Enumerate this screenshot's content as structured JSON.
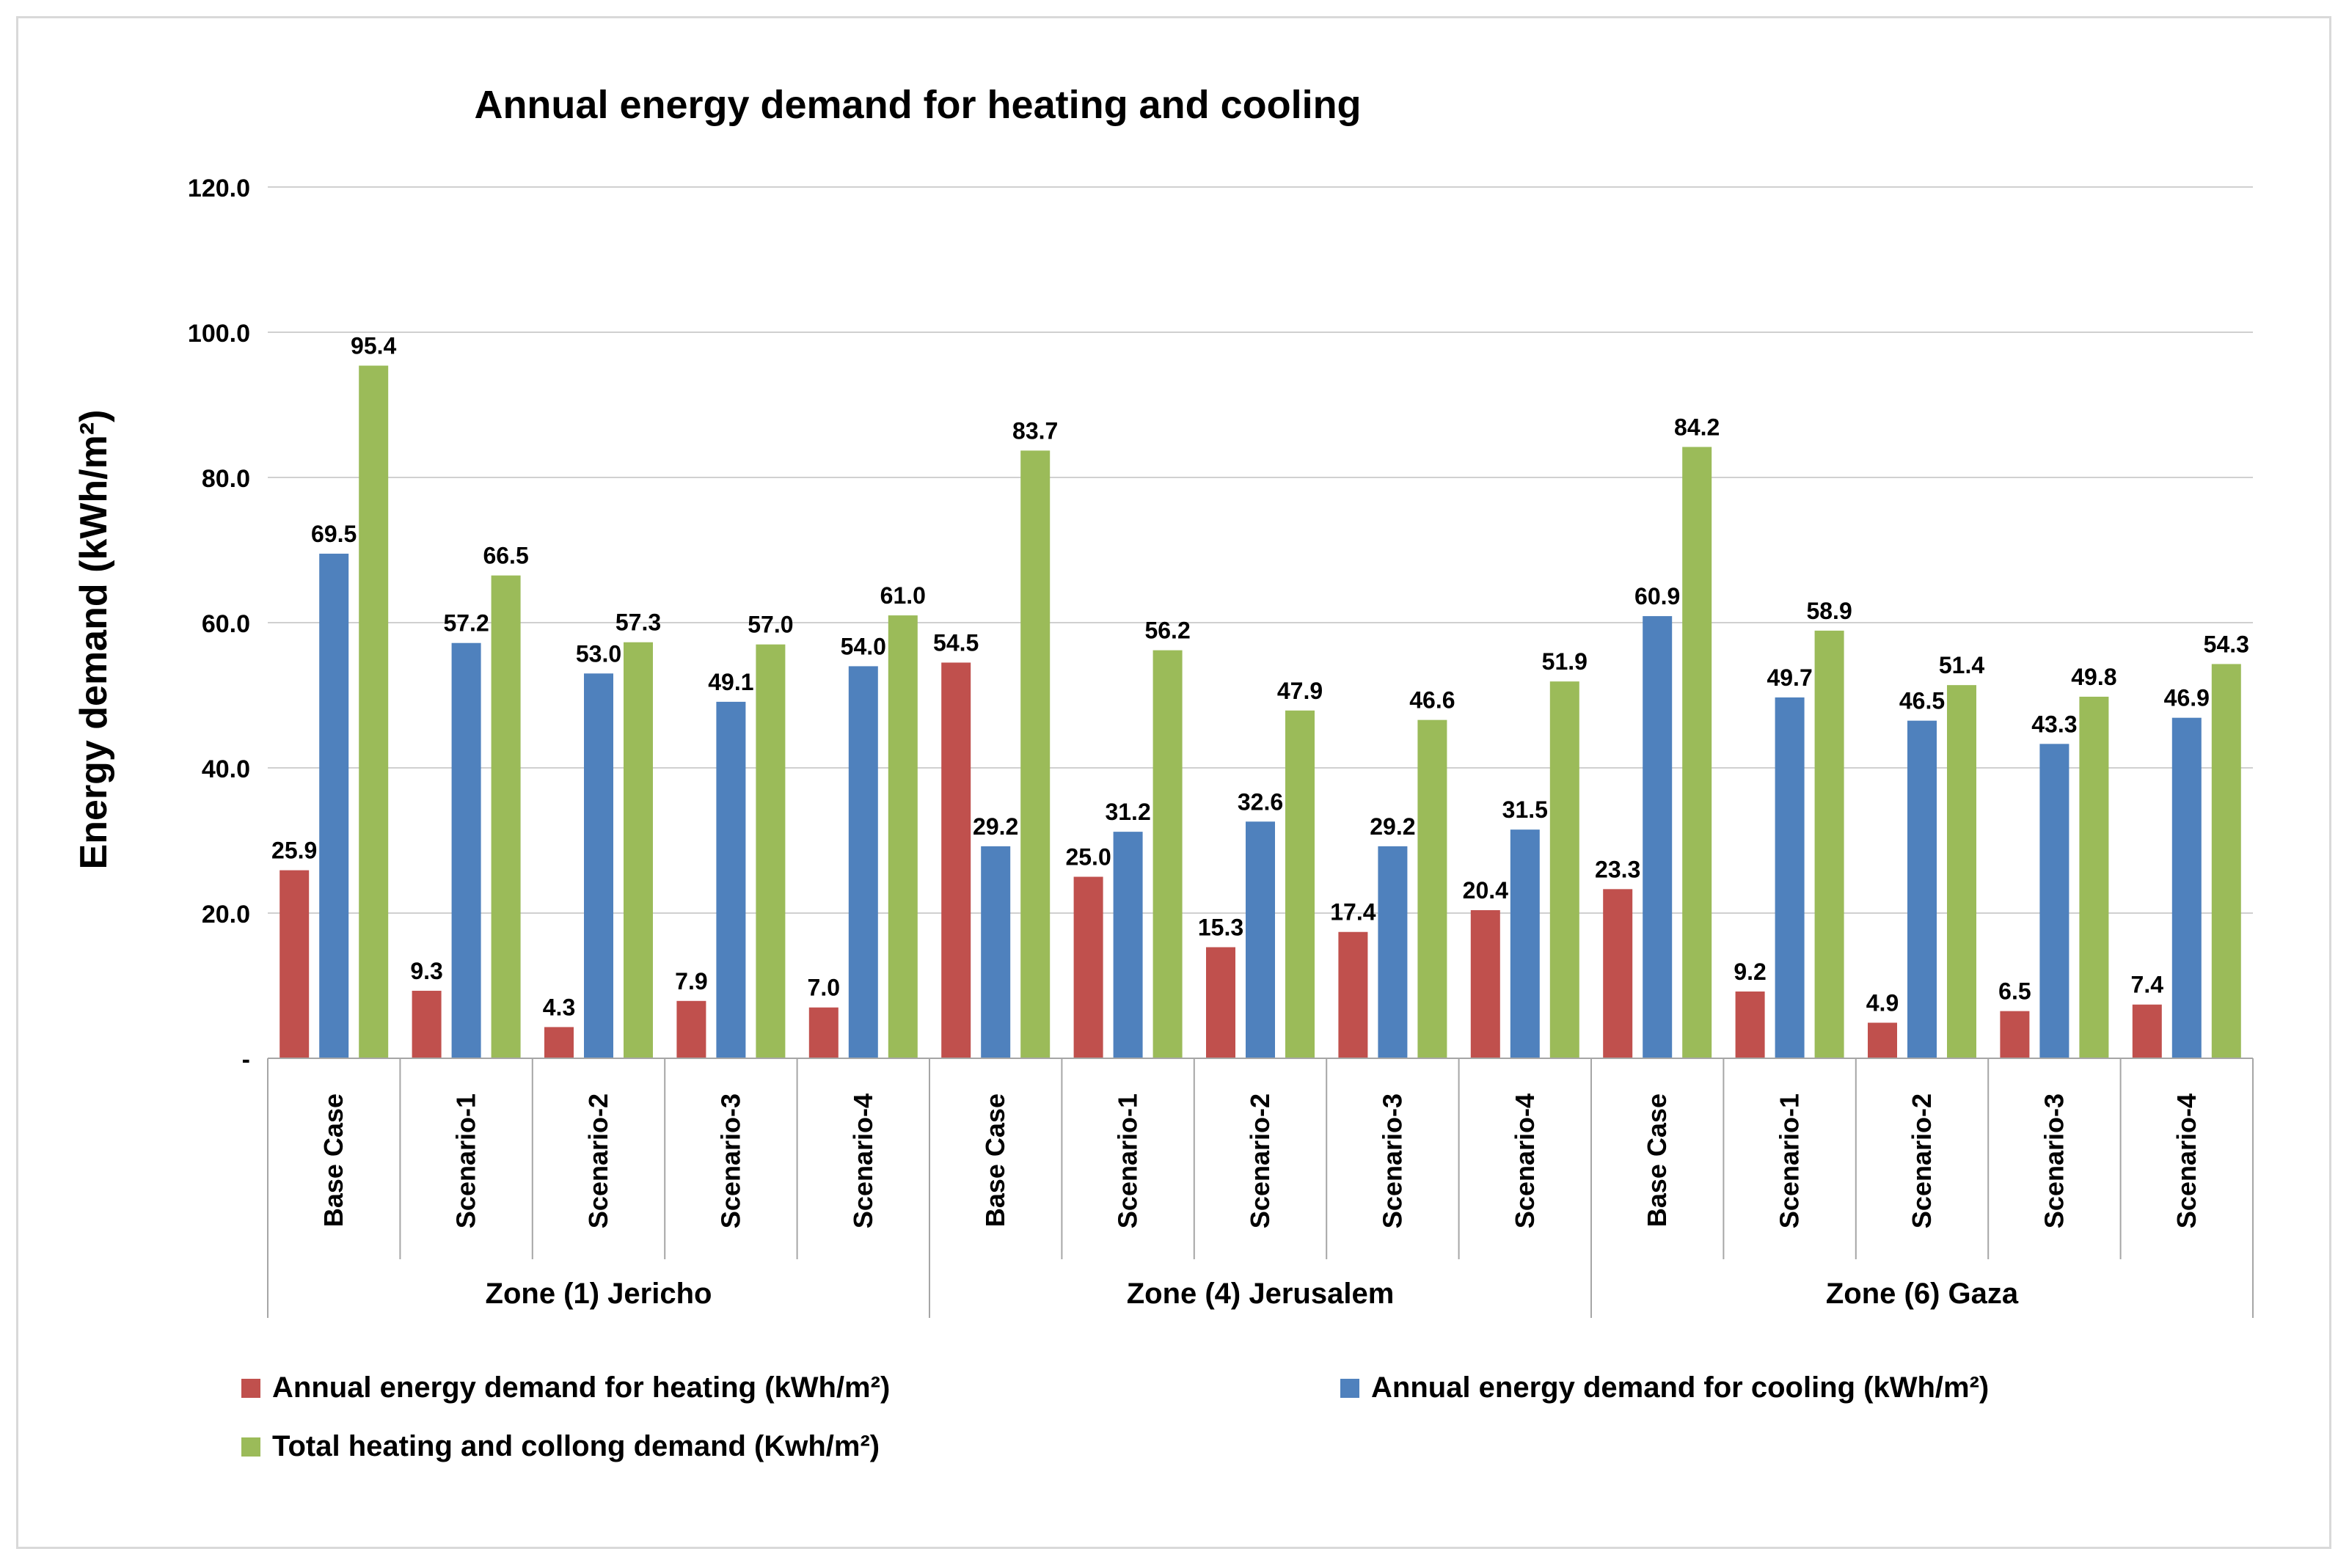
{
  "chart_data": {
    "type": "bar",
    "title": "Annual energy demand for heating and cooling",
    "ylabel": "Energy demand (kWh/m²)",
    "xlabel": "",
    "ylim": [
      0,
      120
    ],
    "yticks": [
      0,
      20,
      40,
      60,
      80,
      100,
      120
    ],
    "ytick_labels": [
      "-",
      "20.0",
      "40.0",
      "60.0",
      "80.0",
      "100.0",
      "120.0"
    ],
    "grid": true,
    "legend_position": "bottom",
    "groups": [
      {
        "label": "Zone (1) Jericho",
        "categories": [
          "Base Case",
          "Scenario-1",
          "Scenario-2",
          "Scenario-3",
          "Scenario-4"
        ]
      },
      {
        "label": "Zone (4) Jerusalem",
        "categories": [
          "Base Case",
          "Scenario-1",
          "Scenario-2",
          "Scenario-3",
          "Scenario-4"
        ]
      },
      {
        "label": "Zone (6) Gaza",
        "categories": [
          "Base Case",
          "Scenario-1",
          "Scenario-2",
          "Scenario-3",
          "Scenario-4"
        ]
      }
    ],
    "series": [
      {
        "name": "Annual energy demand for heating (kWh/m²)",
        "color": "#c0504d",
        "values": [
          25.9,
          9.3,
          4.3,
          7.9,
          7.0,
          54.5,
          25.0,
          15.3,
          17.4,
          20.4,
          23.3,
          9.2,
          4.9,
          6.5,
          7.4
        ],
        "labels": [
          "25.9",
          "9.3",
          "4.3",
          "7.9",
          "7.0",
          "54.5",
          "25.0",
          "15.3",
          "17.4",
          "20.4",
          "23.3",
          "9.2",
          "4.9",
          "6.5",
          "7.4"
        ]
      },
      {
        "name": "Annual energy demand for cooling (kWh/m²)",
        "color": "#4f81bd",
        "values": [
          69.5,
          57.2,
          53.0,
          49.1,
          54.0,
          29.2,
          31.2,
          32.6,
          29.2,
          31.5,
          60.9,
          49.7,
          46.5,
          43.3,
          46.9
        ],
        "labels": [
          "69.5",
          "57.2",
          "53.0",
          "49.1",
          "54.0",
          "29.2",
          "31.2",
          "32.6",
          "29.2",
          "31.5",
          "60.9",
          "49.7",
          "46.5",
          "43.3",
          "46.9"
        ]
      },
      {
        "name": "Total heating and collong demand (Kwh/m²)",
        "color": "#9bbb59",
        "values": [
          95.4,
          66.5,
          57.3,
          57.0,
          61.0,
          83.7,
          56.2,
          47.9,
          46.6,
          51.9,
          84.2,
          58.9,
          51.4,
          49.8,
          54.3
        ],
        "labels": [
          "95.4",
          "66.5",
          "57.3",
          "57.0",
          "61.0",
          "83.7",
          "56.2",
          "47.9",
          "46.6",
          "51.9",
          "84.2",
          "58.9",
          "51.4",
          "49.8",
          "54.3"
        ]
      }
    ]
  }
}
